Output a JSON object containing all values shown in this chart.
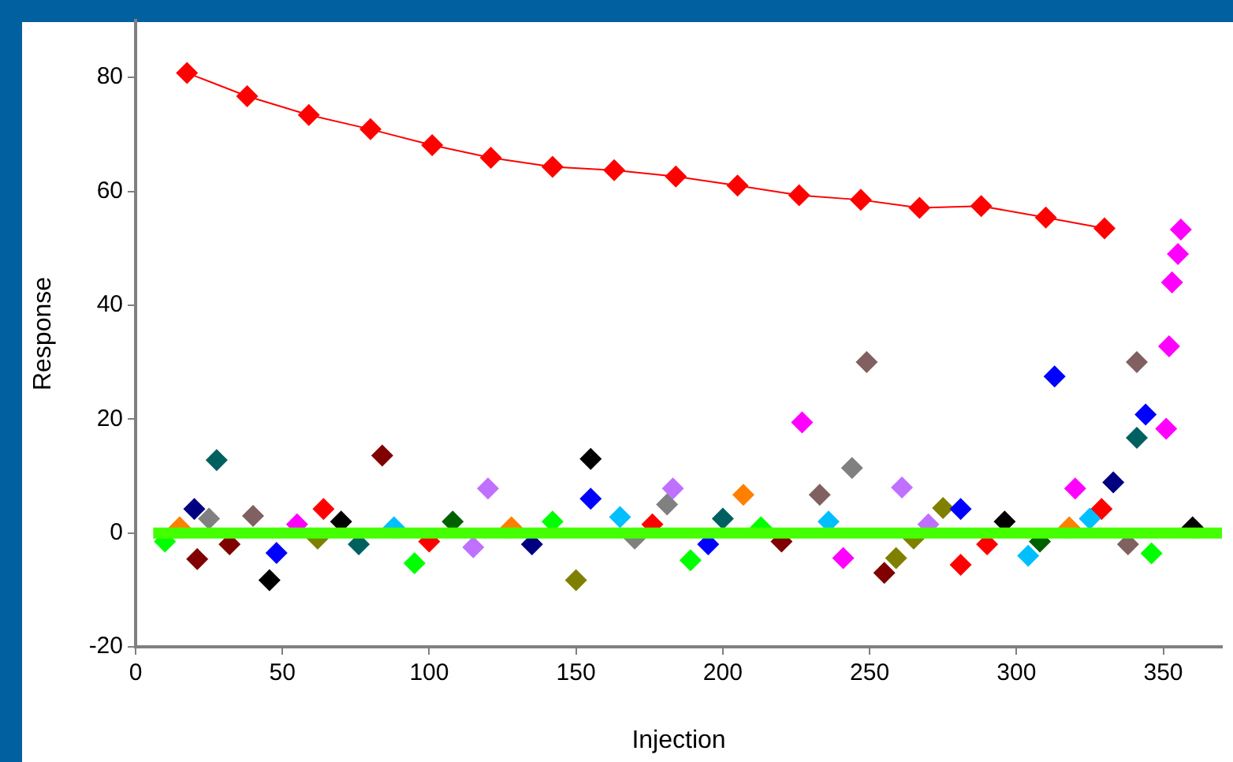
{
  "chart_data": {
    "type": "scatter",
    "xlabel": "Injection",
    "ylabel": "Response",
    "xlim": [
      0,
      370
    ],
    "xticks": [
      0,
      50,
      100,
      150,
      200,
      250,
      300,
      350
    ],
    "ylim": [
      -20,
      90
    ],
    "yticks": [
      -20,
      0,
      20,
      40,
      60,
      80
    ],
    "grid": false,
    "legend": false,
    "series": [
      {
        "type": "line",
        "color": "#ff0000",
        "marker": "diamond",
        "line_style": "solid",
        "x": [
          17.5,
          38,
          59,
          80,
          101,
          121,
          142,
          163,
          184,
          205,
          226,
          247,
          267,
          288,
          310,
          330
        ],
        "values": [
          80.8,
          76.7,
          73.4,
          70.9,
          68.1,
          65.9,
          64.3,
          63.7,
          62.6,
          61,
          59.3,
          58.5,
          57.1,
          57.4,
          55.4,
          53.5
        ]
      },
      {
        "type": "scatter",
        "marker": "diamond",
        "color": "#0000ff",
        "x": [
          27.6,
          20,
          21,
          84,
          45.6,
          64,
          120,
          155,
          155,
          150,
          95,
          165,
          227,
          249,
          313,
          341,
          344,
          341,
          351,
          352,
          353,
          355,
          356,
          333,
          329,
          320,
          244,
          261,
          183,
          181,
          207,
          233,
          275,
          281,
          255,
          281,
          189,
          241,
          259,
          304,
          346,
          10,
          15,
          25,
          32,
          40,
          48,
          55,
          62,
          70,
          76,
          88,
          100,
          108,
          115,
          128,
          135,
          142,
          170,
          176,
          195,
          200,
          213,
          220,
          236,
          265,
          270,
          290,
          296,
          308,
          318,
          325,
          338,
          360
        ],
        "values": [
          12.8,
          4.2,
          -4.6,
          13.6,
          -8.3,
          4.2,
          7.8,
          13,
          6,
          -8.3,
          -5.3,
          2.8,
          19.4,
          30,
          27.5,
          30,
          20.8,
          16.7,
          18.3,
          32.8,
          44,
          49,
          53.3,
          8.9,
          4.2,
          7.8,
          11.4,
          8,
          7.8,
          5,
          6.7,
          6.7,
          4.4,
          4.2,
          -7,
          -5.6,
          -4.8,
          -4.4,
          -4.4,
          -4,
          -3.6,
          -1.5,
          1,
          2.5,
          -2,
          3,
          -3.5,
          1.5,
          -1,
          2,
          -2,
          1,
          -1.5,
          2,
          -2.5,
          1,
          -2,
          2,
          -1,
          1.5,
          -2,
          2.5,
          1,
          -1.5,
          2,
          -1,
          1.5,
          -2,
          2,
          -1.5,
          1,
          2.5,
          -2,
          1
        ],
        "colors": [
          "#006060",
          "#000080",
          "#800000",
          "#800000",
          "#000000",
          "#ff0000",
          "#c070ff",
          "#000000",
          "#0000ff",
          "#808000",
          "#00ff00",
          "#00bfff",
          "#ff00ff",
          "#806060",
          "#0000ff",
          "#806060",
          "#0000ff",
          "#006060",
          "#ff00ff",
          "#ff00ff",
          "#ff00ff",
          "#ff00ff",
          "#ff00ff",
          "#000080",
          "#ff0000",
          "#ff00ff",
          "#808080",
          "#c070ff",
          "#c070ff",
          "#808080",
          "#ff8000",
          "#806060",
          "#808000",
          "#0000ff",
          "#800000",
          "#ff0000",
          "#00ff00",
          "#ff00ff",
          "#808000",
          "#00bfff",
          "#00ff00",
          "#00ff00",
          "#ff8000",
          "#808080",
          "#800000",
          "#806060",
          "#0000ff",
          "#ff00ff",
          "#808000",
          "#000000",
          "#006060",
          "#00bfff",
          "#ff0000",
          "#006000",
          "#c070ff",
          "#ff8000",
          "#000080",
          "#00ff00",
          "#808080",
          "#ff0000",
          "#0000ff",
          "#006060",
          "#00ff00",
          "#800000",
          "#00bfff",
          "#808000",
          "#c070ff",
          "#ff0000",
          "#000000",
          "#006000",
          "#ff8000",
          "#00bfff",
          "#806060",
          "#000000"
        ]
      },
      {
        "type": "line",
        "color": "#44ff00",
        "marker": "none",
        "line_style": "solid",
        "x": [
          6,
          370
        ],
        "values": [
          0,
          0
        ]
      }
    ]
  }
}
